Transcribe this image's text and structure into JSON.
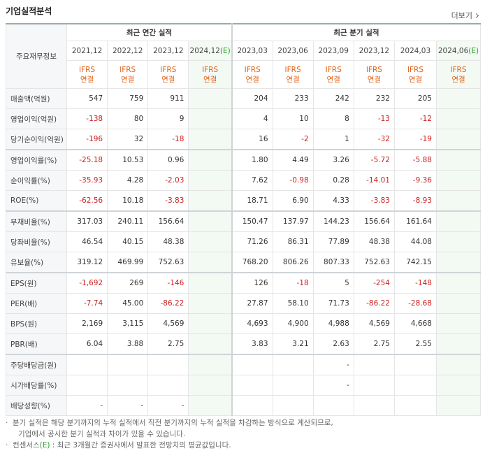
{
  "header": {
    "title": "기업실적분석",
    "more": "더보기"
  },
  "table": {
    "corner": "주요재무정보",
    "groups": [
      {
        "title": "최근 연간 실적",
        "columns": [
          {
            "period": "2021,12",
            "standard": "IFRS",
            "scope": "연결"
          },
          {
            "period": "2022,12",
            "standard": "IFRS",
            "scope": "연결"
          },
          {
            "period": "2023,12",
            "standard": "IFRS",
            "scope": "연결"
          },
          {
            "period": "2024,12",
            "estimate": "(E)",
            "standard": "IFRS",
            "scope": "연결"
          }
        ]
      },
      {
        "title": "최근 분기 실적",
        "columns": [
          {
            "period": "2023,03",
            "standard": "IFRS",
            "scope": "연결"
          },
          {
            "period": "2023,06",
            "standard": "IFRS",
            "scope": "연결"
          },
          {
            "period": "2023,09",
            "standard": "IFRS",
            "scope": "연결"
          },
          {
            "period": "2023,12",
            "standard": "IFRS",
            "scope": "연결"
          },
          {
            "period": "2024,03",
            "standard": "IFRS",
            "scope": "연결"
          },
          {
            "period": "2024,06",
            "estimate": "(E)",
            "standard": "IFRS",
            "scope": "연결"
          }
        ]
      }
    ],
    "rows": [
      {
        "label": "매출액(억원)",
        "values": [
          [
            "547",
            "759",
            "911",
            null
          ],
          [
            "204",
            "233",
            "242",
            "232",
            "205",
            null
          ]
        ]
      },
      {
        "label": "영업이익(억원)",
        "values": [
          [
            "-138",
            "80",
            "9",
            null
          ],
          [
            "4",
            "10",
            "8",
            "-13",
            "-12",
            null
          ]
        ]
      },
      {
        "label": "당기순이익(억원)",
        "values": [
          [
            "-196",
            "32",
            "-18",
            null
          ],
          [
            "16",
            "-2",
            "1",
            "-32",
            "-19",
            null
          ]
        ]
      },
      {
        "label": "영업이익률(%)",
        "values": [
          [
            "-25.18",
            "10.53",
            "0.96",
            null
          ],
          [
            "1.80",
            "4.49",
            "3.26",
            "-5.72",
            "-5.88",
            null
          ]
        ]
      },
      {
        "label": "순이익률(%)",
        "values": [
          [
            "-35.93",
            "4.28",
            "-2.03",
            null
          ],
          [
            "7.62",
            "-0.98",
            "0.28",
            "-14.01",
            "-9.36",
            null
          ]
        ]
      },
      {
        "label": "ROE(%)",
        "values": [
          [
            "-62.56",
            "10.18",
            "-3.83",
            null
          ],
          [
            "18.71",
            "6.90",
            "4.33",
            "-3.83",
            "-8.93",
            null
          ]
        ]
      },
      {
        "label": "부채비율(%)",
        "values": [
          [
            "317.03",
            "240.11",
            "156.64",
            null
          ],
          [
            "150.47",
            "137.97",
            "144.23",
            "156.64",
            "161.64",
            null
          ]
        ]
      },
      {
        "label": "당좌비율(%)",
        "values": [
          [
            "46.54",
            "40.15",
            "48.38",
            null
          ],
          [
            "71.26",
            "86.31",
            "77.89",
            "48.38",
            "44.08",
            null
          ]
        ]
      },
      {
        "label": "유보율(%)",
        "values": [
          [
            "319.12",
            "469.99",
            "752.63",
            null
          ],
          [
            "768.20",
            "806.26",
            "807.33",
            "752.63",
            "742.15",
            null
          ]
        ]
      },
      {
        "label": "EPS(원)",
        "values": [
          [
            "-1,692",
            "269",
            "-146",
            null
          ],
          [
            "126",
            "-18",
            "5",
            "-254",
            "-148",
            null
          ]
        ]
      },
      {
        "label": "PER(배)",
        "values": [
          [
            "-7.74",
            "45.00",
            "-86.22",
            null
          ],
          [
            "27.87",
            "58.10",
            "71.73",
            "-86.22",
            "-28.68",
            null
          ]
        ]
      },
      {
        "label": "BPS(원)",
        "values": [
          [
            "2,169",
            "3,115",
            "4,569",
            null
          ],
          [
            "4,693",
            "4,900",
            "4,988",
            "4,569",
            "4,668",
            null
          ]
        ]
      },
      {
        "label": "PBR(배)",
        "values": [
          [
            "6.04",
            "3.88",
            "2.75",
            null
          ],
          [
            "3.83",
            "3.21",
            "2.63",
            "2.75",
            "2.55",
            null
          ]
        ]
      },
      {
        "label": "주당배당금(원)",
        "values": [
          [
            null,
            null,
            null,
            null
          ],
          [
            null,
            null,
            "-",
            null,
            null,
            null
          ]
        ]
      },
      {
        "label": "시가배당률(%)",
        "values": [
          [
            null,
            null,
            null,
            null
          ],
          [
            null,
            null,
            "-",
            null,
            null,
            null
          ]
        ]
      },
      {
        "label": "배당성향(%)",
        "values": [
          [
            "-",
            "-",
            "-",
            null
          ],
          [
            null,
            null,
            null,
            null,
            null,
            null
          ]
        ]
      }
    ]
  },
  "notes": [
    {
      "lines": [
        "분기 실적은 해당 분기까지의 누적 실적에서 직전 분기까지의 누적 실적을 차감하는 방식으로 계산되므로,",
        "기업에서 공시한 분기 실적과 차이가 있을 수 있습니다."
      ]
    },
    {
      "lines": [
        "컨센서스"
      ],
      "estimate": "(E)",
      "tail": " : 최근 3개월간 증권사에서 발표한 전망치의 평균값입니다."
    }
  ]
}
